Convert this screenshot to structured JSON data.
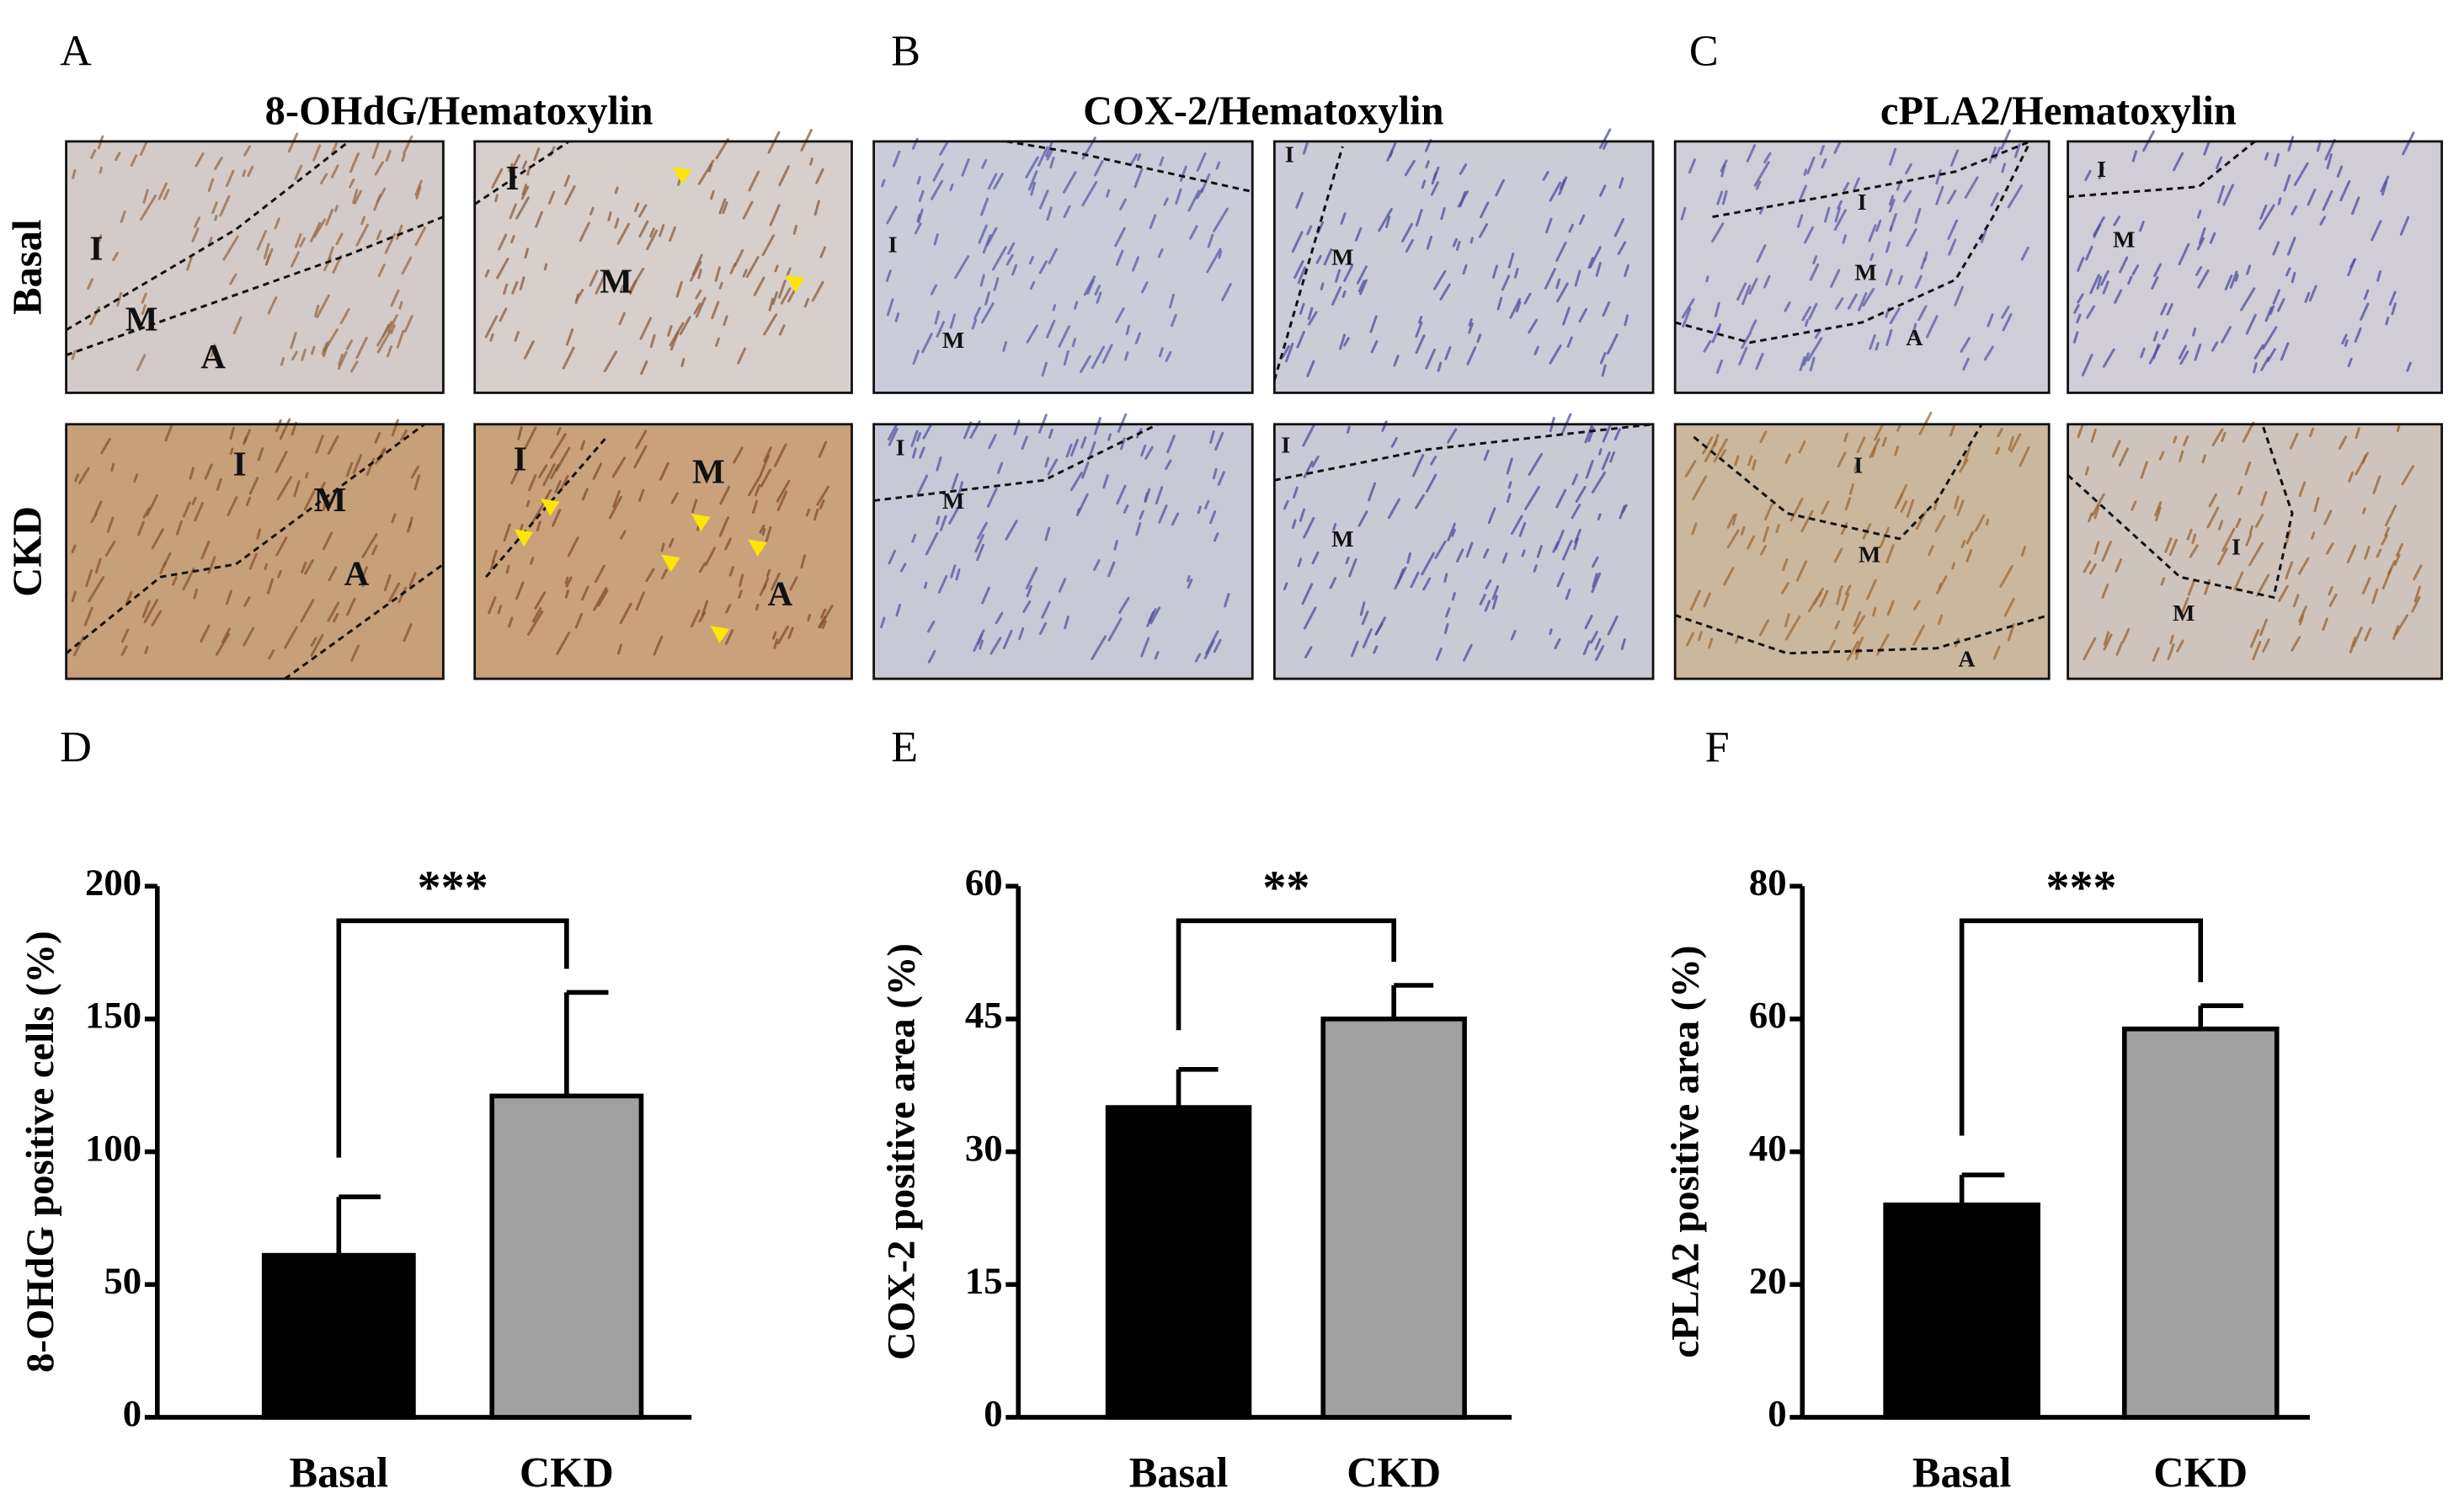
{
  "row_labels": [
    "Basal",
    "CKD"
  ],
  "image_panels": [
    {
      "panel": "A",
      "title": "8-OHdG/Hematoxylin",
      "images": [
        [
          "I",
          "M",
          "A"
        ],
        [
          "I",
          "M"
        ],
        [
          "I",
          "M",
          "A"
        ],
        [
          "I",
          "M",
          "A"
        ]
      ]
    },
    {
      "panel": "B",
      "title": "COX-2/Hematoxylin",
      "images": [
        [
          "I",
          "M"
        ],
        [
          "I",
          "M"
        ],
        [
          "I",
          "M"
        ],
        [
          "I",
          "M"
        ]
      ]
    },
    {
      "panel": "C",
      "title": "cPLA2/Hematoxylin",
      "images": [
        [
          "I",
          "M",
          "A"
        ],
        [
          "I",
          "M"
        ],
        [
          "I",
          "M",
          "A"
        ],
        [
          "I",
          "M"
        ]
      ]
    }
  ],
  "chart_data": [
    {
      "type": "bar",
      "panel": "D",
      "y_label": "8-OHdG positive cells (%)",
      "categories": [
        "Basal",
        "CKD"
      ],
      "values": [
        61,
        121
      ],
      "errors": [
        22,
        39
      ],
      "colors": [
        "#000000",
        "#a0a0a0"
      ],
      "ylim": [
        0,
        200
      ],
      "yticks": [
        0,
        50,
        100,
        150,
        200
      ],
      "significance": "***"
    },
    {
      "type": "bar",
      "panel": "E",
      "y_label": "COX-2 positive area (%)",
      "categories": [
        "Basal",
        "CKD"
      ],
      "values": [
        35,
        45
      ],
      "errors": [
        4.3,
        3.8
      ],
      "colors": [
        "#000000",
        "#a0a0a0"
      ],
      "ylim": [
        0,
        60
      ],
      "yticks": [
        0,
        15,
        30,
        45,
        60
      ],
      "significance": "**"
    },
    {
      "type": "bar",
      "panel": "F",
      "y_label": "cPLA2 positive area (%)",
      "categories": [
        "Basal",
        "CKD"
      ],
      "values": [
        32,
        58.5
      ],
      "errors": [
        4.5,
        3.5
      ],
      "colors": [
        "#000000",
        "#a0a0a0"
      ],
      "ylim": [
        0,
        80
      ],
      "yticks": [
        0,
        20,
        40,
        60,
        80
      ],
      "significance": "***"
    }
  ]
}
